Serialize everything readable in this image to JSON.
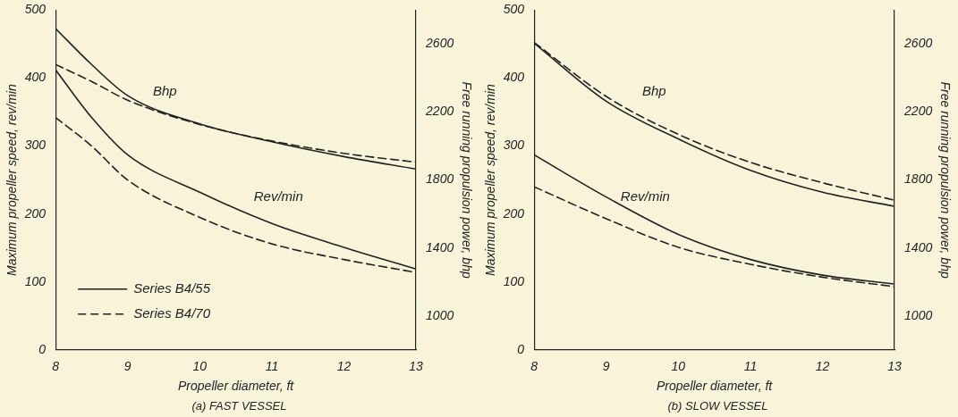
{
  "chart_data": [
    {
      "type": "line",
      "title": "(a) FAST VESSEL",
      "xlabel": "Propeller diameter, ft",
      "ylabel": "Maximum propeller speed, rev/min",
      "y2label": "Free running propulsion power, bhp",
      "xlim": [
        8,
        13
      ],
      "xticks": [
        8,
        9,
        10,
        11,
        12,
        13
      ],
      "ylim": [
        0,
        500
      ],
      "yticks": [
        0,
        100,
        200,
        300,
        400,
        500
      ],
      "y2lim": [
        800,
        2800
      ],
      "y2ticks": [
        1000,
        1400,
        1800,
        2200,
        2600
      ],
      "x": [
        8,
        8.5,
        9,
        10,
        11,
        12,
        13
      ],
      "grid": false,
      "legend": "bottom left",
      "marker": "none",
      "series": [
        {
          "name": "Series B4/55",
          "color": "#222222",
          "line_style": "solid",
          "values": [
            412,
            342,
            287,
            232,
            186,
            151,
            119
          ]
        },
        {
          "name": "Series B4/70",
          "color": "#222222",
          "line_style": "dashed",
          "values": [
            342,
            300,
            250,
            195,
            156,
            133,
            114
          ]
        },
        {
          "color": "#222222",
          "line_style": "solid",
          "axis": "y2",
          "values": [
            2692,
            2480,
            2297,
            2131,
            2025,
            1938,
            1865
          ]
        },
        {
          "color": "#222222",
          "line_style": "dashed",
          "axis": "y2",
          "values": [
            2480,
            2380,
            2270,
            2127,
            2030,
            1957,
            1905
          ]
        }
      ],
      "annotations": [
        "Bhp",
        "Rev/min"
      ]
    },
    {
      "type": "line",
      "title": "(b) SLOW VESSEL",
      "xlabel": "Propeller diameter, ft",
      "ylabel": "Maximum propeller speed, rev/min",
      "y2label": "Free running propulsion power, bhp",
      "xlim": [
        8,
        13
      ],
      "xticks": [
        8,
        9,
        10,
        11,
        12,
        13
      ],
      "ylim": [
        0,
        500
      ],
      "yticks": [
        0,
        100,
        200,
        300,
        400,
        500
      ],
      "y2lim": [
        800,
        2800
      ],
      "y2ticks": [
        1000,
        1400,
        1800,
        2200,
        2600
      ],
      "x": [
        8,
        9,
        10,
        11,
        12,
        13
      ],
      "grid": false,
      "marker": "none",
      "series": [
        {
          "color": "#222222",
          "line_style": "solid",
          "values": [
            287,
            225,
            170,
            133,
            110,
            97
          ]
        },
        {
          "color": "#222222",
          "line_style": "dashed",
          "values": [
            240,
            193,
            151,
            126,
            107,
            93
          ]
        },
        {
          "color": "#222222",
          "line_style": "solid",
          "axis": "y2",
          "values": [
            2606,
            2264,
            2042,
            1857,
            1728,
            1645
          ]
        },
        {
          "color": "#222222",
          "line_style": "dashed",
          "axis": "y2",
          "values": [
            2610,
            2292,
            2069,
            1904,
            1784,
            1681
          ]
        }
      ],
      "annotations": [
        "Bhp",
        "Rev/min"
      ]
    }
  ]
}
